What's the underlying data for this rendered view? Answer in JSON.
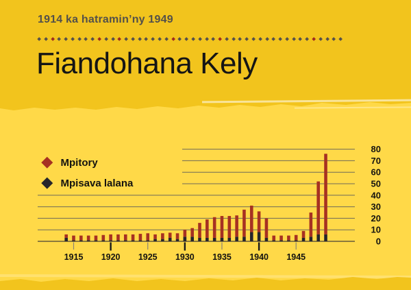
{
  "header": {
    "subtitle": "1914 ka hatramin’ny 1949",
    "title": "Fiandohana Kely",
    "divider": {
      "count": 46,
      "red_indices": [
        2,
        9,
        12,
        20,
        27,
        41
      ]
    }
  },
  "legend": [
    {
      "label": "Mpitory",
      "color": "#a63122"
    },
    {
      "label": "Mpisava lalana",
      "color": "#26252b"
    }
  ],
  "colors": {
    "band_yellow": "#f2c41d",
    "panel_yellow": "#ffd948",
    "bar_red": "#a63122",
    "bar_black": "#26252b",
    "grid_line": "#6f6a58",
    "axis_line": "#474234",
    "minor_tick": "#8a8476",
    "major_tick": "#1a1a1a",
    "label_text": "#14130f",
    "divider_gray": "#55504b",
    "divider_red": "#9e2b20"
  },
  "chart_data": {
    "type": "bar",
    "stacked": true,
    "title": "Fiandohana Kely",
    "subtitle": "1914 ka hatramin’ny 1949",
    "x": [
      1914,
      1915,
      1916,
      1917,
      1918,
      1919,
      1920,
      1921,
      1922,
      1923,
      1924,
      1925,
      1926,
      1927,
      1928,
      1929,
      1930,
      1931,
      1932,
      1933,
      1934,
      1935,
      1936,
      1937,
      1938,
      1939,
      1940,
      1941,
      1942,
      1943,
      1944,
      1945,
      1946,
      1947,
      1948,
      1949
    ],
    "series": [
      {
        "name": "Mpisava lalana",
        "color": "#26252b",
        "values": [
          3,
          1,
          1,
          1,
          1,
          1,
          1,
          1,
          1,
          1,
          1,
          1,
          2,
          2,
          3,
          2,
          4,
          4,
          3,
          3,
          3,
          3,
          3,
          4,
          4,
          8,
          8,
          3,
          1,
          1,
          1,
          1,
          3,
          4,
          6,
          6
        ]
      },
      {
        "name": "Mpitory",
        "color": "#a63122",
        "values": [
          3,
          4,
          4,
          4,
          4,
          4.5,
          5,
          5,
          5,
          5,
          5.5,
          6,
          4,
          5,
          4.5,
          5,
          6,
          7.5,
          13,
          16,
          18,
          19,
          19,
          18.5,
          23.5,
          23,
          18,
          17,
          4,
          4,
          4,
          4.5,
          6,
          21,
          46,
          70
        ]
      }
    ],
    "y_axis": {
      "min": 0,
      "max": 80,
      "tick_step": 10,
      "tick_labels": [
        "0",
        "10",
        "20",
        "30",
        "40",
        "50",
        "60",
        "70",
        "80"
      ],
      "side": "right"
    },
    "x_axis": {
      "labeled_years": [
        "1915",
        "1920",
        "1925",
        "1930",
        "1935",
        "1940",
        "1945"
      ],
      "major_tick_years": [
        1920,
        1930,
        1940
      ]
    },
    "grid": {
      "on": true,
      "short_lines_from_value": 50
    },
    "legend_position": "left"
  }
}
